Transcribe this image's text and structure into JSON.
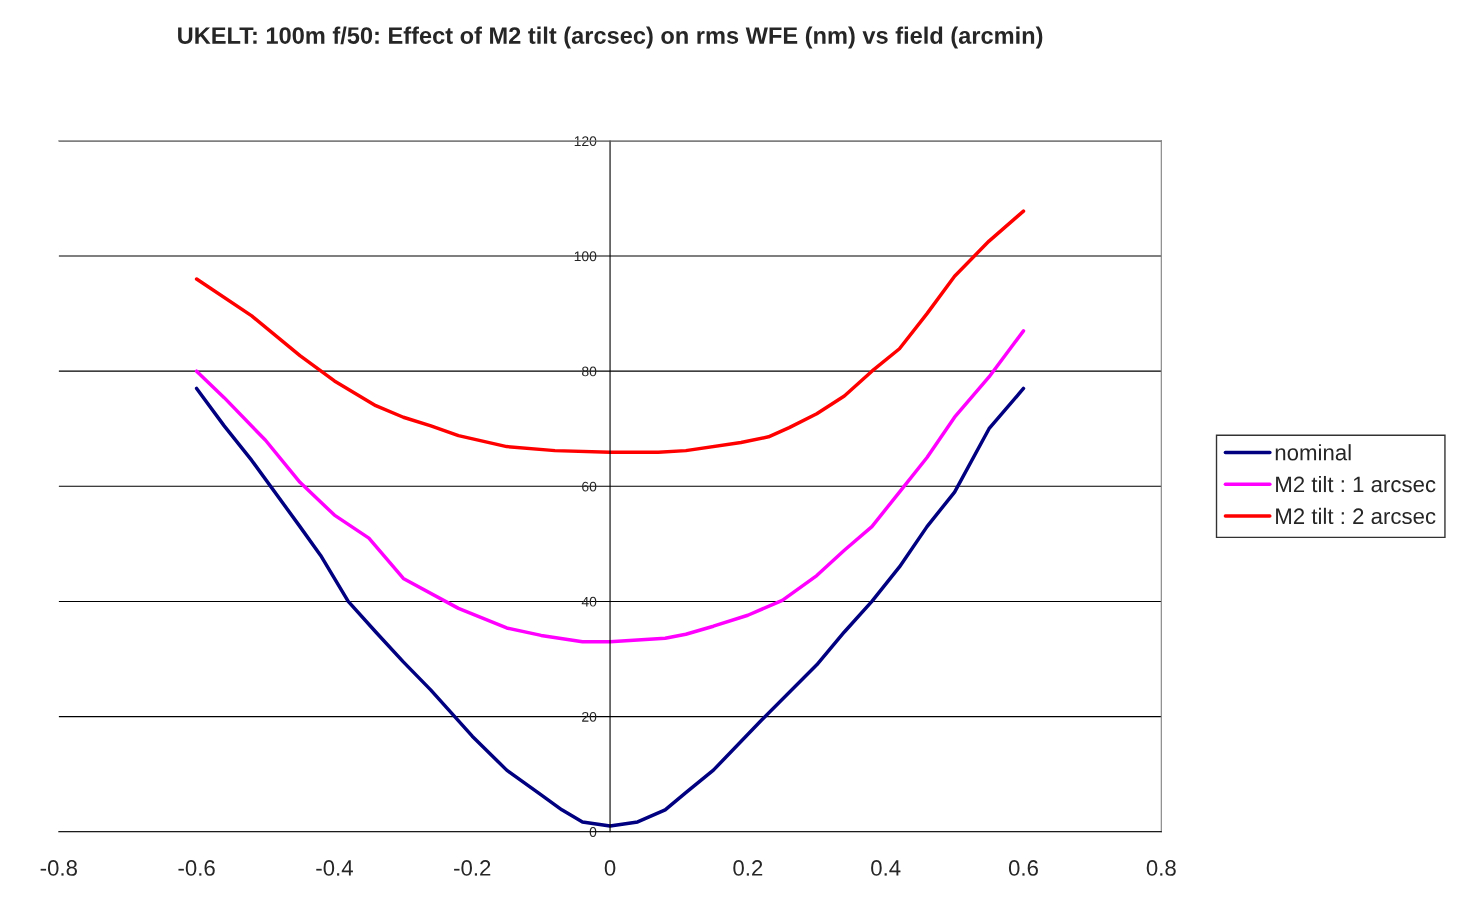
{
  "chart_data": {
    "type": "line",
    "title": "UKELT: 100m f/50: Effect of M2 tilt (arcsec) on rms WFE (nm) vs field (arcmin)",
    "xlim": [
      -0.8,
      0.8
    ],
    "xticks": [
      -0.8,
      -0.6,
      -0.4,
      -0.2,
      0,
      0.2,
      0.4,
      0.6,
      0.8
    ],
    "ylim": [
      0,
      120
    ],
    "yticks": [
      0,
      20,
      40,
      60,
      80,
      100,
      120
    ],
    "grid": "y",
    "legend": "right",
    "marker": "none",
    "line_style": "solid",
    "series": [
      {
        "name": "nominal",
        "color": "#000080",
        "x": [
          -0.6,
          -0.56,
          -0.52,
          -0.45,
          -0.42,
          -0.38,
          -0.34,
          -0.3,
          -0.26,
          -0.2,
          -0.15,
          -0.1,
          -0.07,
          -0.04,
          0,
          0.04,
          0.08,
          0.11,
          0.15,
          0.22,
          0.3,
          0.34,
          0.38,
          0.42,
          0.46,
          0.5,
          0.55,
          0.6
        ],
        "values": [
          77,
          70.5,
          64.5,
          53,
          48,
          40,
          34.7,
          29.5,
          24.6,
          16.6,
          10.7,
          6.4,
          3.8,
          1.7,
          1,
          1.7,
          3.8,
          6.8,
          10.7,
          19.4,
          29,
          34.7,
          40,
          46,
          53,
          59,
          70,
          77
        ]
      },
      {
        "name": "M2 tilt : 1 arcsec",
        "color": "#ff00ff",
        "x": [
          -0.6,
          -0.56,
          -0.5,
          -0.45,
          -0.4,
          -0.35,
          -0.3,
          -0.22,
          -0.15,
          -0.1,
          -0.04,
          0,
          0.04,
          0.08,
          0.11,
          0.15,
          0.2,
          0.25,
          0.3,
          0.34,
          0.38,
          0.42,
          0.46,
          0.5,
          0.55,
          0.6
        ],
        "values": [
          80,
          75.4,
          68,
          60.7,
          55,
          51,
          44,
          38.8,
          35.4,
          34.1,
          33,
          33,
          33.3,
          33.6,
          34.3,
          35.7,
          37.6,
          40.2,
          44.5,
          48.9,
          53,
          59,
          65,
          72,
          79,
          87
        ]
      },
      {
        "name": "M2 tilt : 2 arcsec",
        "color": "#ff0000",
        "x": [
          -0.6,
          -0.52,
          -0.45,
          -0.4,
          -0.34,
          -0.3,
          -0.26,
          -0.22,
          -0.15,
          -0.08,
          0,
          0.07,
          0.11,
          0.19,
          0.23,
          0.26,
          0.3,
          0.34,
          0.38,
          0.42,
          0.46,
          0.5,
          0.55,
          0.6
        ],
        "values": [
          96,
          89.6,
          82.7,
          78.3,
          74,
          72,
          70.5,
          68.8,
          66.9,
          66.2,
          65.9,
          65.9,
          66.2,
          67.6,
          68.6,
          70.2,
          72.6,
          75.7,
          80,
          83.9,
          90,
          96.5,
          102.6,
          107.8
        ]
      }
    ]
  }
}
